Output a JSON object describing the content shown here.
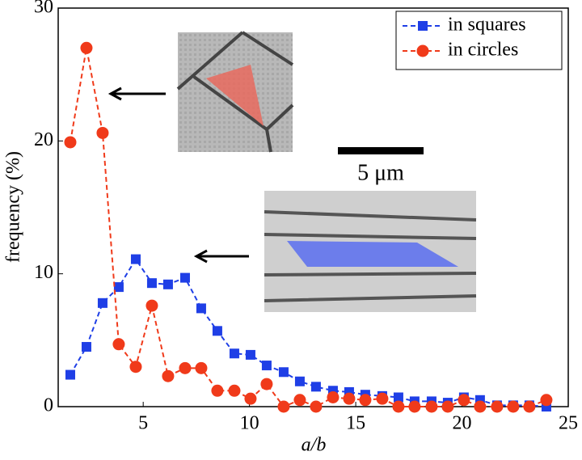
{
  "chart_data": {
    "type": "line",
    "x_label": "a/b",
    "y_label": "frequency (%)",
    "annotation": "5 μm",
    "x": [
      1.57,
      2.33,
      3.09,
      3.85,
      4.65,
      5.41,
      6.17,
      6.97,
      7.73,
      8.49,
      9.29,
      10.05,
      10.81,
      11.61,
      12.37,
      13.13,
      13.93,
      14.69,
      15.45,
      16.25,
      17.01,
      17.77,
      18.57,
      19.33,
      20.09,
      20.85,
      21.65,
      22.41,
      23.17,
      23.97
    ],
    "series": [
      {
        "name": "in squares",
        "color": "#1f3fe6",
        "marker": "square",
        "values": [
          2.4,
          4.5,
          7.8,
          9.0,
          11.1,
          9.3,
          9.2,
          9.7,
          7.4,
          5.7,
          4.0,
          3.9,
          3.1,
          2.6,
          1.9,
          1.5,
          1.2,
          1.1,
          0.9,
          0.8,
          0.7,
          0.4,
          0.4,
          0.3,
          0.7,
          0.5,
          0.1,
          0.1,
          0.1,
          0.0
        ]
      },
      {
        "name": "in circles",
        "color": "#f03a1a",
        "marker": "circle",
        "values": [
          19.9,
          27.0,
          20.6,
          4.7,
          3.0,
          7.6,
          2.3,
          2.9,
          2.9,
          1.2,
          1.2,
          0.6,
          1.7,
          0.0,
          0.5,
          0.0,
          0.7,
          0.6,
          0.5,
          0.6,
          0.0,
          0.0,
          0.0,
          0.0,
          0.5,
          0.0,
          0.0,
          0.0,
          0.0,
          0.5
        ]
      }
    ],
    "xlim": [
      1,
      25
    ],
    "xticks": [
      5,
      10,
      15,
      20,
      25
    ],
    "ylim": [
      0,
      30
    ],
    "yticks": [
      0,
      10,
      20,
      30
    ],
    "legend": "upper right"
  }
}
